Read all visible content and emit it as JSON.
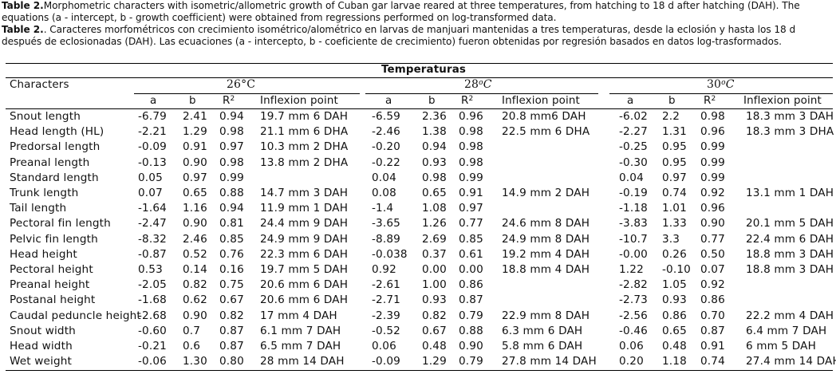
{
  "caption": {
    "en_label": "Table 2.",
    "en_text": "Morphometric characters with isometric/allometric growth of Cuban gar larvae reared at three temperatures, from hatching to 18 d after hatching (DAH). The equations (a - intercept, b - growth coefficient) were obtained from regressions performed on log-transformed data.",
    "es_label": "Table 2.",
    "es_text": ". Caracteres morfométricos con crecimiento isométrico/alométrico en larvas de manjuari mantenidas a tres temperaturas, desde la eclosión y hasta los 18 d después de eclosionadas (DAH). Las ecuaciones (a - intercepto, b - coeficiente de crecimiento) fueron obtenidas por regresión basados en datos log-trasformados."
  },
  "table": {
    "group_header": "Temperaturas",
    "characters_header": "Characters",
    "temperatures": [
      {
        "num": "26",
        "unit": "°C"
      },
      {
        "num": "28",
        "unit": "C",
        "sup": "o"
      },
      {
        "num": "30",
        "unit": "C",
        "sup": "o"
      }
    ],
    "sub_headers": {
      "a": "a",
      "b": "b",
      "r2_base": "R",
      "r2_sup": "2",
      "inflexion": "Inflexion point"
    },
    "rows": [
      {
        "name": "Snout length",
        "t26": [
          "-6.79",
          "2.41",
          "0.94",
          "19.7 mm 6 DAH"
        ],
        "t28": [
          "-6.59",
          "2.36",
          "0.96",
          "20.8 mm6 DAH"
        ],
        "t30": [
          "-6.02",
          "2.2",
          "0.98",
          "18.3 mm 3 DAH"
        ]
      },
      {
        "name": "Head length (HL)",
        "t26": [
          "-2.21",
          "1.29",
          "0.98",
          "21.1 mm 6 DHA"
        ],
        "t28": [
          "-2.46",
          "1.38",
          "0.98",
          "22.5 mm 6 DHA"
        ],
        "t30": [
          "-2.27",
          "1.31",
          "0.96",
          "18.3 mm 3 DHA"
        ]
      },
      {
        "name": "Predorsal length",
        "t26": [
          "-0.09",
          "0.91",
          "0.97",
          "10.3 mm 2 DHA"
        ],
        "t28": [
          "-0.20",
          "0.94",
          "0.98",
          ""
        ],
        "t30": [
          "-0.25",
          "0.95",
          "0.99",
          ""
        ]
      },
      {
        "name": "Preanal length",
        "t26": [
          "-0.13",
          "0.90",
          "0.98",
          "13.8 mm 2 DHA"
        ],
        "t28": [
          "-0.22",
          "0.93",
          "0.98",
          ""
        ],
        "t30": [
          "-0.30",
          "0.95",
          "0.99",
          ""
        ]
      },
      {
        "name": "Standard length",
        "t26": [
          "0.05",
          "0.97",
          "0.99",
          ""
        ],
        "t28": [
          "0.04",
          "0.98",
          "0.99",
          ""
        ],
        "t30": [
          "0.04",
          "0.97",
          "0.99",
          ""
        ]
      },
      {
        "name": "Trunk length",
        "t26": [
          "0.07",
          "0.65",
          "0.88",
          "14.7 mm 3 DAH"
        ],
        "t28": [
          "0.08",
          "0.65",
          "0.91",
          "14.9 mm 2 DAH"
        ],
        "t30": [
          "-0.19",
          "0.74",
          "0.92",
          "13.1 mm 1 DAH"
        ]
      },
      {
        "name": "Tail length",
        "t26": [
          "-1.64",
          "1.16",
          "0.94",
          "11.9 mm 1 DAH"
        ],
        "t28": [
          "-1.4",
          "1.08",
          "0.97",
          ""
        ],
        "t30": [
          "-1.18",
          "1.01",
          "0.96",
          ""
        ]
      },
      {
        "name": "Pectoral fin length",
        "t26": [
          "-2.47",
          "0.90",
          "0.81",
          "24.4 mm 9 DAH"
        ],
        "t28": [
          "-3.65",
          "1.26",
          "0.77",
          "24.6 mm 8 DAH"
        ],
        "t30": [
          "-3.83",
          "1.33",
          "0.90",
          "20.1 mm 5 DAH"
        ]
      },
      {
        "name": "Pelvic fin length",
        "t26": [
          "-8.32",
          "2.46",
          "0.85",
          "24.9 mm 9 DAH"
        ],
        "t28": [
          "-8.89",
          "2.69",
          "0.85",
          "24.9 mm 8 DAH"
        ],
        "t30": [
          "-10.7",
          "3.3",
          "0.77",
          "22.4 mm 6 DAH"
        ]
      },
      {
        "name": "Head height",
        "t26": [
          "-0.87",
          "0.52",
          "0.76",
          "22.3 mm 6 DAH"
        ],
        "t28": [
          "-0.038",
          "0.37",
          "0.61",
          "19.2 mm 4 DAH"
        ],
        "t30": [
          "-0.00",
          "0.26",
          "0.50",
          "18.8 mm 3 DAH"
        ]
      },
      {
        "name": "Pectoral height",
        "t26": [
          "0.53",
          "0.14",
          "0.16",
          "19.7 mm 5 DAH"
        ],
        "t28": [
          "0.92",
          "0.00",
          "0.00",
          "18.8 mm 4 DAH"
        ],
        "t30": [
          "1.22",
          "-0.10",
          "0.07",
          "18.8 mm 3 DAH"
        ]
      },
      {
        "name": "Preanal height",
        "t26": [
          "-2.05",
          "0.82",
          "0.75",
          "20.6 mm 6 DAH"
        ],
        "t28": [
          "-2.61",
          "1.00",
          "0.86",
          ""
        ],
        "t30": [
          "-2.82",
          "1.05",
          "0.92",
          ""
        ]
      },
      {
        "name": "Postanal height",
        "t26": [
          "-1.68",
          "0.62",
          "0.67",
          "20.6 mm 6 DAH"
        ],
        "t28": [
          "-2.71",
          "0.93",
          "0.87",
          ""
        ],
        "t30": [
          "-2.73",
          "0.93",
          "0.86",
          ""
        ]
      },
      {
        "name": "Caudal peduncle height",
        "t26": [
          "-2.68",
          "0.90",
          "0.82",
          "17 mm 4 DAH"
        ],
        "t28": [
          "-2.39",
          "0.82",
          "0.79",
          "22.9 mm 8 DAH"
        ],
        "t30": [
          "-2.56",
          "0.86",
          "0.70",
          "22.2 mm 4 DAH"
        ]
      },
      {
        "name": "Snout width",
        "t26": [
          "-0.60",
          "0.7",
          "0.87",
          "6.1 mm 7 DAH"
        ],
        "t28": [
          "-0.52",
          "0.67",
          "0.88",
          "6.3 mm 6 DAH"
        ],
        "t30": [
          "-0.46",
          "0.65",
          "0.87",
          "6.4 mm 7 DAH"
        ]
      },
      {
        "name": "Head width",
        "t26": [
          "-0.21",
          "0.6",
          "0.87",
          "6.5 mm 7 DAH"
        ],
        "t28": [
          "0.06",
          "0.48",
          "0.90",
          "5.8 mm 6 DAH"
        ],
        "t30": [
          "0.06",
          "0.48",
          "0.91",
          "6 mm 5 DAH"
        ]
      },
      {
        "name": "Wet weight",
        "t26": [
          "-0.06",
          "1.30",
          "0.80",
          "28 mm 14 DAH"
        ],
        "t28": [
          "-0.09",
          "1.29",
          "0.79",
          "27.8 mm 14 DAH"
        ],
        "t30": [
          "0.20",
          "1.18",
          "0.74",
          "27.4 mm 14 DAH"
        ]
      }
    ]
  }
}
